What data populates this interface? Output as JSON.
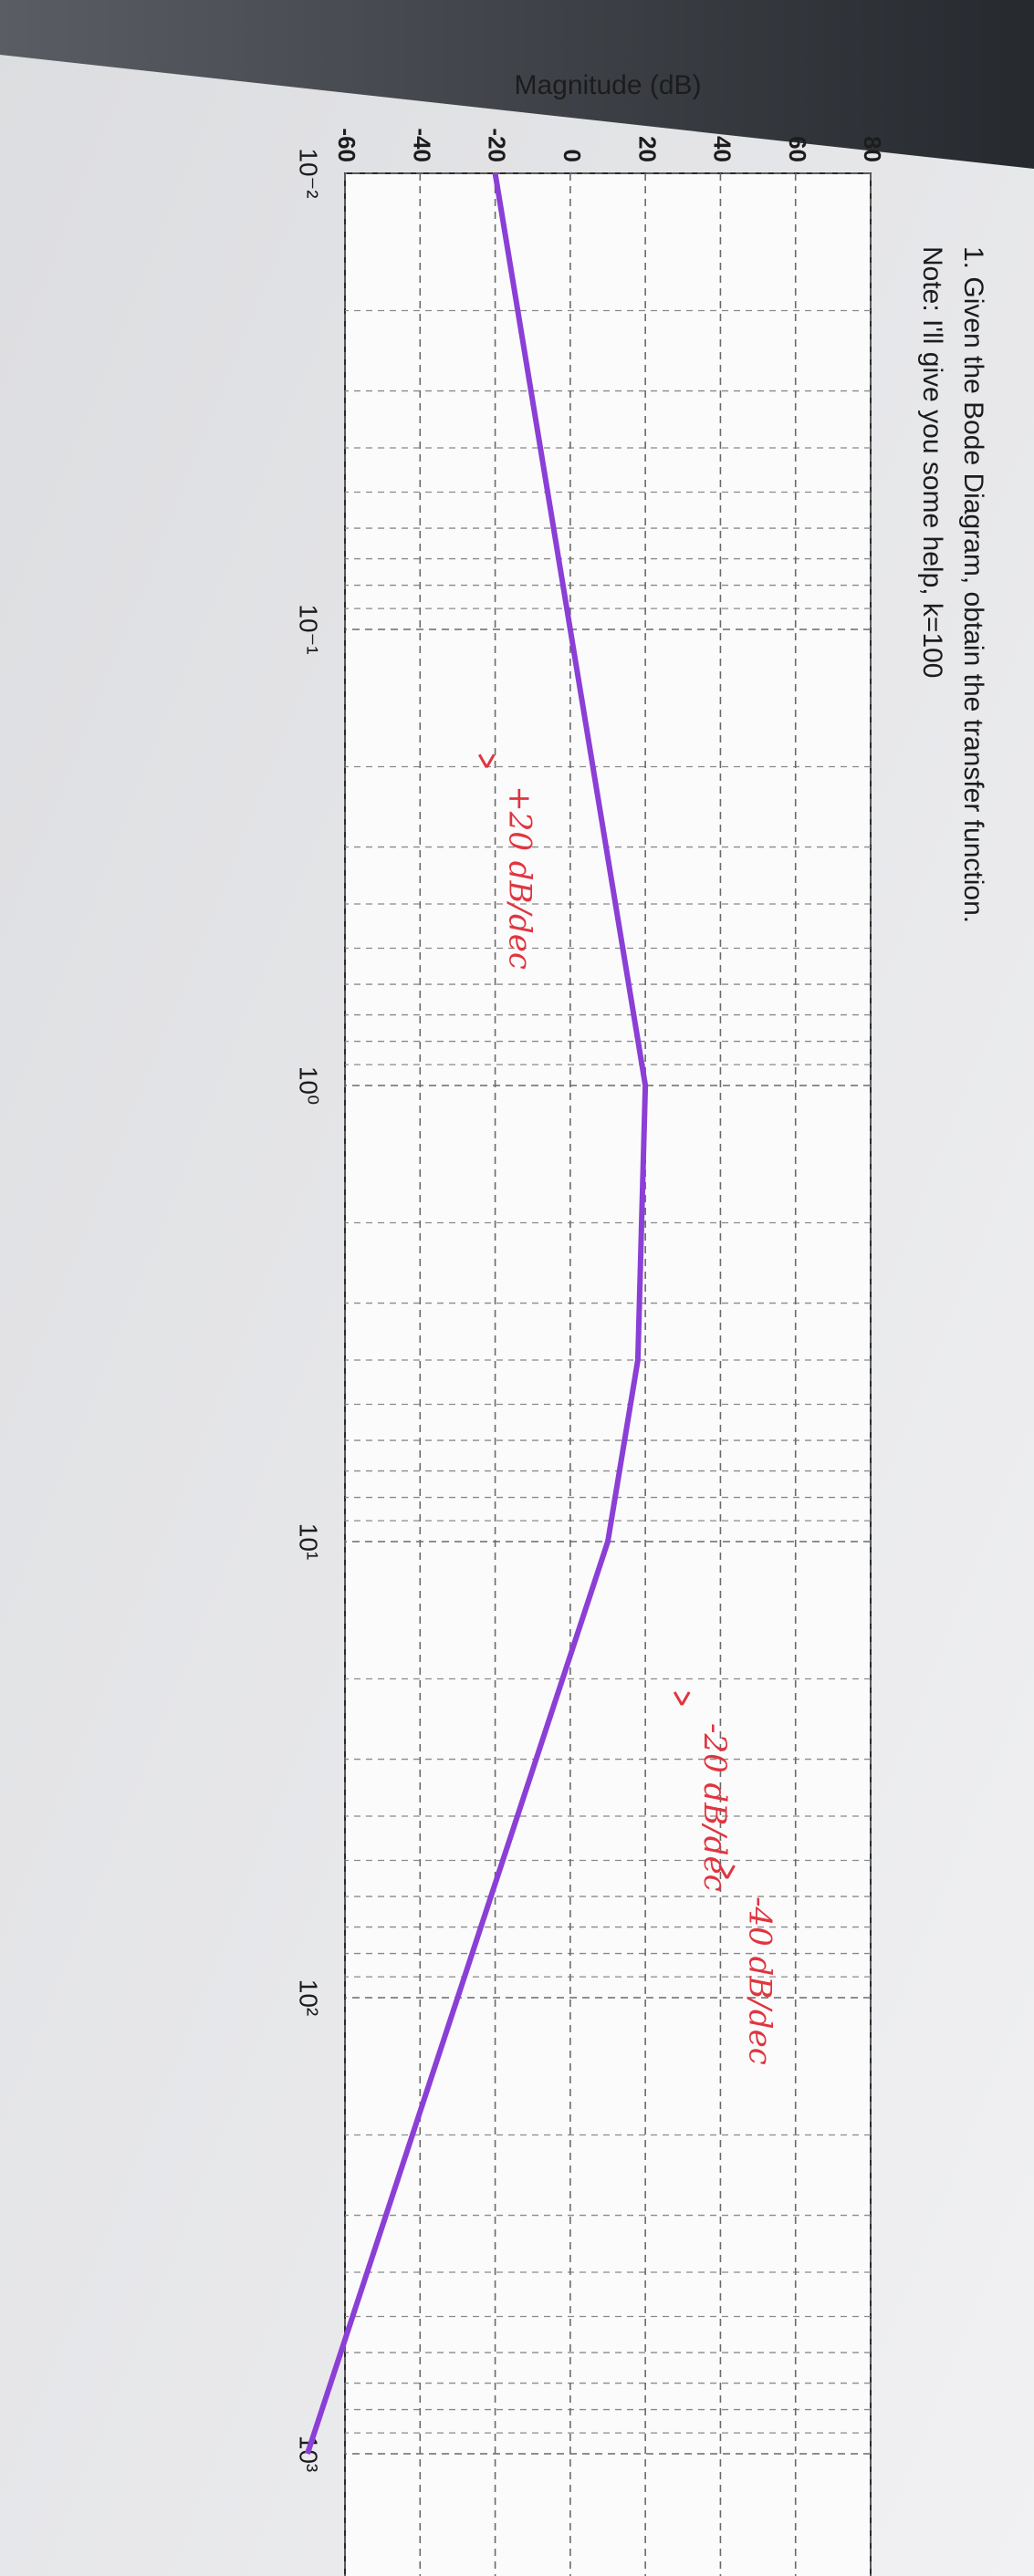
{
  "chart_data": {
    "type": "line",
    "title": "1. Given the Bode Diagram, obtain the transfer function.",
    "subtitle": "Note: I'll give you some help, k=100",
    "ylabel": "Magnitude (dB)",
    "xscale": "log",
    "x": [
      0.01,
      1,
      4,
      10,
      1000
    ],
    "values": [
      -20,
      20,
      18,
      10,
      -70
    ],
    "color": "#8b3fd6",
    "xlim": [
      0.01,
      1000
    ],
    "xticks": [
      {
        "value": 0.01,
        "label": "10⁻²"
      },
      {
        "value": 0.1,
        "label": "10⁻¹"
      },
      {
        "value": 1,
        "label": "10⁰"
      },
      {
        "value": 10,
        "label": "10¹"
      },
      {
        "value": 100,
        "label": "10²"
      },
      {
        "value": 1000,
        "label": "10³"
      }
    ],
    "ylim": [
      -60,
      80
    ],
    "yticks": [
      -60,
      -40,
      -20,
      0,
      20,
      40,
      60,
      80
    ],
    "grid": true,
    "annotations": [
      "+20 dB/dec",
      "-20 dB/dec",
      "-40 dB/dec"
    ]
  }
}
